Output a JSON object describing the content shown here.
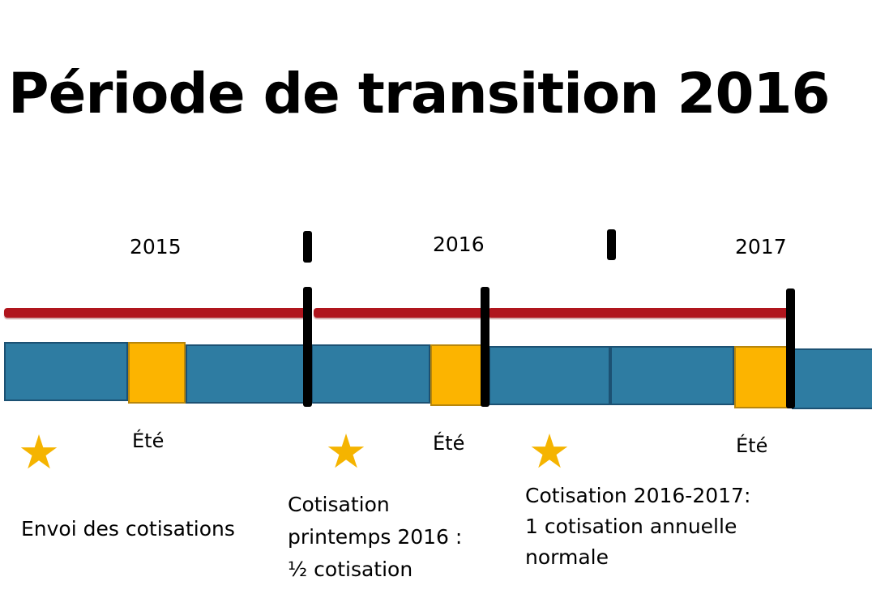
{
  "title": "Période de transition 2016",
  "years": [
    "2015",
    "2016",
    "2017"
  ],
  "summer_label": "Été",
  "colors": {
    "red_bar": "#b0151d",
    "blue_segment": "#2e7ca2",
    "summer_segment": "#fcb400",
    "star": "#f5b400",
    "divider": "#000000"
  },
  "icons": [
    "star-icon"
  ],
  "notes": {
    "sending": "Envoi des cotisations",
    "spring_lines": [
      "Cotisation",
      "printemps 2016 :",
      "½ cotisation"
    ],
    "annual_lines": [
      "Cotisation 2016-2017:",
      "1 cotisation annuelle",
      "normale"
    ]
  }
}
